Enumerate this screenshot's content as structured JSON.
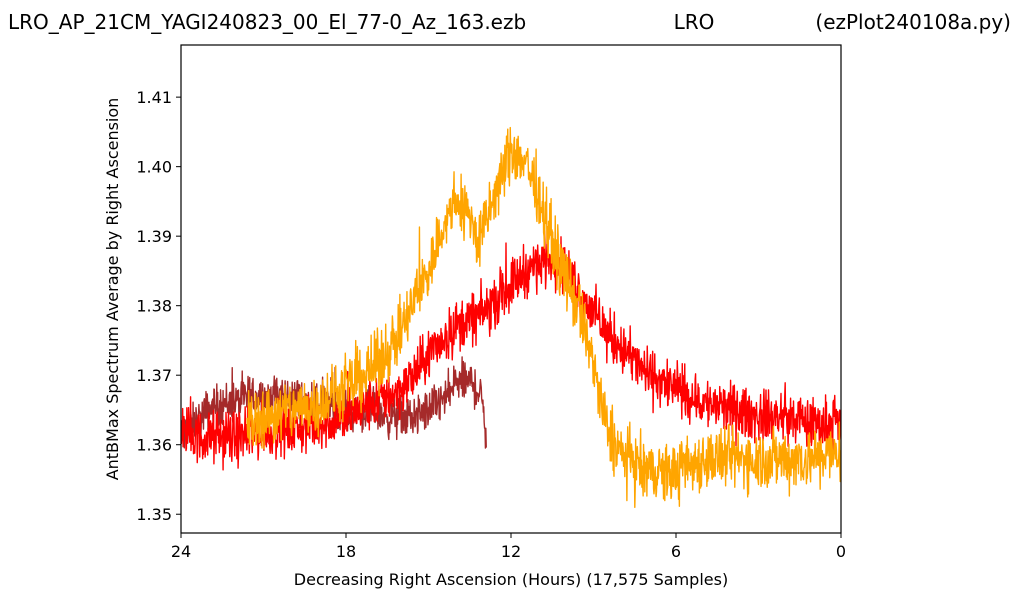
{
  "chart_data": {
    "type": "line",
    "title_left": "LRO_AP_21CM_YAGI240823_00_El_77-0_Az_163.ezb",
    "title_center": "LRO",
    "title_right": "(ezPlot240108a.py)",
    "xlabel": "Decreasing Right Ascension (Hours) (17,575 Samples)",
    "ylabel": "AntBMax Spectrum Average by Right Ascension",
    "xlim": [
      24,
      0
    ],
    "ylim": [
      1.3473,
      1.4175
    ],
    "x_ticks": [
      24,
      18,
      12,
      6,
      0
    ],
    "x_tick_labels": [
      "24",
      "18",
      "12",
      "6",
      "0"
    ],
    "y_ticks": [
      1.35,
      1.36,
      1.37,
      1.38,
      1.39,
      1.4,
      1.41
    ],
    "y_tick_labels": [
      "1.35",
      "1.36",
      "1.37",
      "1.38",
      "1.39",
      "1.40",
      "1.41"
    ],
    "grid": false,
    "legend": "none",
    "series": [
      {
        "color": "#a52a2a",
        "x": [
          24,
          23.5,
          23,
          22.5,
          22,
          21.5,
          21,
          20.5,
          20,
          19.5,
          19,
          18.5,
          18,
          17.5,
          17,
          16.5,
          16,
          15.5,
          15,
          14.6,
          14.3,
          14,
          13.7,
          13.4,
          13.1,
          12.9
        ],
        "y": [
          1.361,
          1.363,
          1.365,
          1.366,
          1.366,
          1.367,
          1.367,
          1.367,
          1.367,
          1.366,
          1.366,
          1.366,
          1.365,
          1.365,
          1.365,
          1.364,
          1.364,
          1.364,
          1.365,
          1.366,
          1.367,
          1.369,
          1.369,
          1.369,
          1.367,
          1.362
        ],
        "noise": 0.0045
      },
      {
        "color": "#ff0000",
        "x": [
          24,
          23.5,
          23,
          22.5,
          22,
          21.5,
          21,
          20,
          19,
          18,
          17,
          16,
          15.5,
          15,
          14.5,
          14,
          13.5,
          13,
          12.5,
          12,
          11.5,
          11,
          10.5,
          10,
          9.5,
          9,
          8.5,
          8,
          7.5,
          7,
          6.5,
          6,
          5.5,
          5,
          4,
          3,
          2,
          1,
          0
        ],
        "y": [
          1.362,
          1.361,
          1.361,
          1.361,
          1.361,
          1.361,
          1.362,
          1.362,
          1.363,
          1.364,
          1.366,
          1.368,
          1.37,
          1.373,
          1.375,
          1.377,
          1.378,
          1.379,
          1.381,
          1.383,
          1.385,
          1.386,
          1.387,
          1.385,
          1.382,
          1.379,
          1.376,
          1.374,
          1.372,
          1.37,
          1.369,
          1.368,
          1.367,
          1.366,
          1.365,
          1.364,
          1.364,
          1.363,
          1.363
        ],
        "noise": 0.0055
      },
      {
        "color": "#ffa500",
        "x": [
          21.6,
          21,
          20,
          19,
          18,
          17,
          16,
          15.5,
          15,
          14.5,
          14,
          13.5,
          13.2,
          13,
          12.5,
          12,
          11.5,
          11,
          10.5,
          10,
          9.5,
          9,
          8.7,
          8.4,
          8,
          7.5,
          7,
          6.5,
          6,
          5.5,
          5,
          4,
          3,
          2,
          1,
          0
        ],
        "y": [
          1.363,
          1.364,
          1.365,
          1.366,
          1.368,
          1.371,
          1.376,
          1.381,
          1.385,
          1.391,
          1.395,
          1.393,
          1.389,
          1.391,
          1.397,
          1.402,
          1.401,
          1.396,
          1.389,
          1.384,
          1.379,
          1.372,
          1.365,
          1.361,
          1.359,
          1.357,
          1.356,
          1.356,
          1.356,
          1.357,
          1.358,
          1.358,
          1.358,
          1.358,
          1.358,
          1.359
        ],
        "noise": 0.0065
      }
    ]
  }
}
